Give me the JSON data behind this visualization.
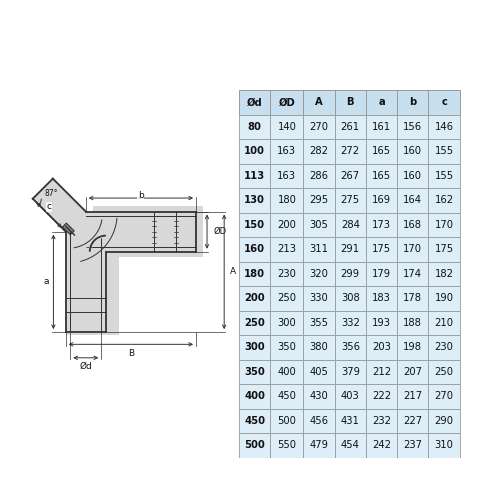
{
  "table_headers": [
    "Ød",
    "ØD",
    "A",
    "B",
    "a",
    "b",
    "c"
  ],
  "table_rows": [
    [
      "80",
      "140",
      "270",
      "261",
      "161",
      "156",
      "146"
    ],
    [
      "100",
      "163",
      "282",
      "272",
      "165",
      "160",
      "155"
    ],
    [
      "113",
      "163",
      "286",
      "267",
      "165",
      "160",
      "155"
    ],
    [
      "130",
      "180",
      "295",
      "275",
      "169",
      "164",
      "162"
    ],
    [
      "150",
      "200",
      "305",
      "284",
      "173",
      "168",
      "170"
    ],
    [
      "160",
      "213",
      "311",
      "291",
      "175",
      "170",
      "175"
    ],
    [
      "180",
      "230",
      "320",
      "299",
      "179",
      "174",
      "182"
    ],
    [
      "200",
      "250",
      "330",
      "308",
      "183",
      "178",
      "190"
    ],
    [
      "250",
      "300",
      "355",
      "332",
      "193",
      "188",
      "210"
    ],
    [
      "300",
      "350",
      "380",
      "356",
      "203",
      "198",
      "230"
    ],
    [
      "350",
      "400",
      "405",
      "379",
      "212",
      "207",
      "250"
    ],
    [
      "400",
      "450",
      "430",
      "403",
      "222",
      "217",
      "270"
    ],
    [
      "450",
      "500",
      "456",
      "431",
      "232",
      "227",
      "290"
    ],
    [
      "500",
      "550",
      "479",
      "454",
      "242",
      "237",
      "310"
    ]
  ],
  "header_bg": "#c8dff0",
  "row_bg_light": "#ddeef8",
  "border_color": "#999999",
  "text_color_dark": "#111111",
  "figure_bg": "#ffffff",
  "drawing_line_color": "#333333",
  "drawing_fill_color": "#d8d8d8"
}
